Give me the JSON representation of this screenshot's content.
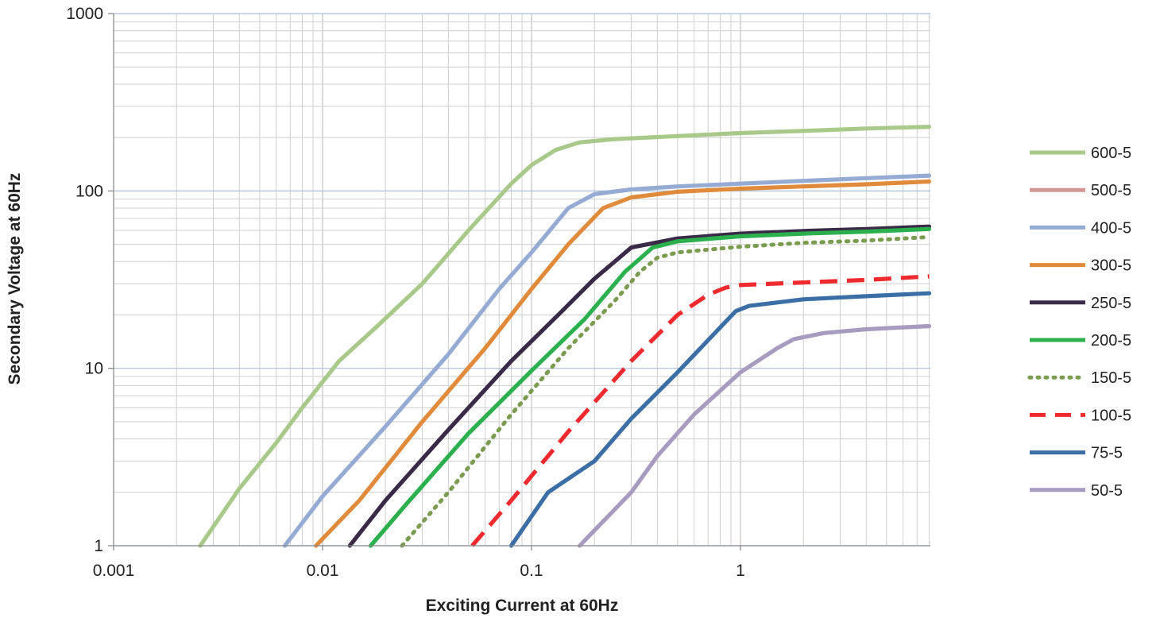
{
  "chart_data": {
    "type": "line",
    "xlabel": "Exciting Current at 60Hz",
    "ylabel": "Secondary Voltage at 60Hz",
    "x_scale": "log",
    "y_scale": "log",
    "xlim": [
      0.001,
      8
    ],
    "ylim": [
      1,
      1000
    ],
    "x_ticks": [
      {
        "value": 0.001,
        "label": "0.001"
      },
      {
        "value": 0.01,
        "label": "0.01"
      },
      {
        "value": 0.1,
        "label": "0.1"
      },
      {
        "value": 1,
        "label": "1"
      }
    ],
    "y_ticks": [
      {
        "value": 1,
        "label": "1"
      },
      {
        "value": 10,
        "label": "10"
      },
      {
        "value": 100,
        "label": "100"
      },
      {
        "value": 1000,
        "label": "1000"
      }
    ],
    "grid": true,
    "legend_position": "right",
    "series": [
      {
        "name": "600-5",
        "color": "#a9c98a",
        "style": "solid",
        "x": [
          0.0026,
          0.004,
          0.006,
          0.008,
          0.012,
          0.018,
          0.03,
          0.05,
          0.08,
          0.1,
          0.13,
          0.17,
          0.25,
          0.5,
          1,
          2,
          4,
          8
        ],
        "y": [
          1,
          2.1,
          3.8,
          6,
          11,
          17,
          30,
          60,
          110,
          140,
          170,
          188,
          196,
          204,
          212,
          218,
          225,
          230
        ]
      },
      {
        "name": "500-5",
        "color": "#d09793",
        "style": "solid",
        "x": [],
        "y": []
      },
      {
        "name": "400-5",
        "color": "#95abd4",
        "style": "solid",
        "x": [
          0.0066,
          0.01,
          0.02,
          0.04,
          0.07,
          0.1,
          0.15,
          0.2,
          0.3,
          0.5,
          1,
          2,
          4,
          8
        ],
        "y": [
          1,
          1.9,
          4.7,
          12,
          28,
          45,
          80,
          96,
          102,
          106,
          110,
          114,
          118,
          122
        ]
      },
      {
        "name": "300-5",
        "color": "#e08a3c",
        "style": "solid",
        "x": [
          0.0093,
          0.015,
          0.03,
          0.06,
          0.1,
          0.15,
          0.22,
          0.3,
          0.5,
          1,
          2,
          4,
          8
        ],
        "y": [
          1,
          1.8,
          5,
          13,
          28,
          50,
          80,
          92,
          99,
          103,
          106,
          109,
          113
        ]
      },
      {
        "name": "250-5",
        "color": "#3a2a48",
        "style": "solid",
        "x": [
          0.0135,
          0.02,
          0.04,
          0.08,
          0.14,
          0.2,
          0.25,
          0.3,
          0.5,
          1,
          2,
          4,
          8
        ],
        "y": [
          1,
          1.8,
          4.5,
          11,
          21,
          32,
          40,
          48,
          54,
          57.5,
          59.5,
          61,
          63
        ]
      },
      {
        "name": "200-5",
        "color": "#2bb04d",
        "style": "solid",
        "x": [
          0.017,
          0.025,
          0.05,
          0.1,
          0.18,
          0.28,
          0.38,
          0.5,
          1,
          2,
          4,
          8
        ],
        "y": [
          1,
          1.7,
          4.3,
          9.7,
          19,
          35,
          48,
          52,
          55.5,
          57.5,
          59,
          61
        ]
      },
      {
        "name": "150-5",
        "color": "#7a9c4f",
        "style": "dotted",
        "x": [
          0.024,
          0.04,
          0.08,
          0.15,
          0.25,
          0.33,
          0.4,
          0.5,
          1,
          2,
          4,
          8
        ],
        "y": [
          1,
          2,
          5.5,
          13,
          24,
          35,
          42,
          45,
          48.5,
          51,
          52.5,
          55
        ]
      },
      {
        "name": "100-5",
        "color": "#ee2a2e",
        "style": "dashed",
        "x": [
          0.052,
          0.08,
          0.15,
          0.3,
          0.5,
          0.7,
          0.85,
          1,
          2,
          4,
          8
        ],
        "y": [
          1,
          1.8,
          4.4,
          11,
          20,
          26,
          28.5,
          29.5,
          30.5,
          31.5,
          33
        ]
      },
      {
        "name": "75-5",
        "color": "#3a6ea5",
        "style": "solid",
        "x": [
          0.08,
          0.12,
          0.2,
          0.3,
          0.5,
          0.8,
          0.95,
          1.1,
          2,
          4,
          8
        ],
        "y": [
          1,
          2,
          3,
          5.2,
          9.5,
          17,
          21,
          22.5,
          24.5,
          25.5,
          26.5
        ]
      },
      {
        "name": "50-5",
        "color": "#a79bbf",
        "style": "solid",
        "x": [
          0.17,
          0.3,
          0.4,
          0.6,
          1,
          1.5,
          1.8,
          2.5,
          4,
          8
        ],
        "y": [
          1,
          2,
          3.2,
          5.5,
          9.5,
          13,
          14.6,
          15.8,
          16.6,
          17.3
        ]
      }
    ]
  }
}
